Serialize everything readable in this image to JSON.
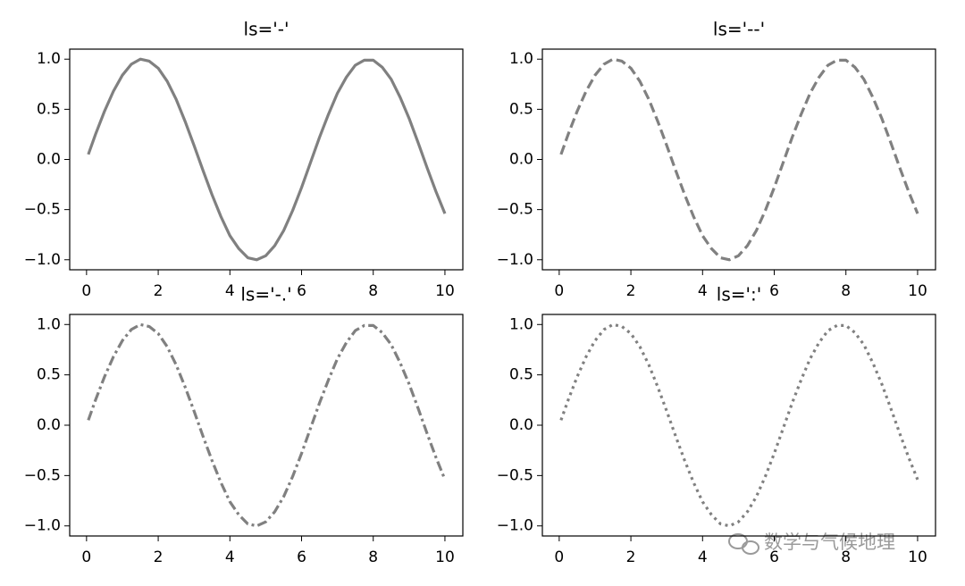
{
  "chart_data": [
    {
      "type": "line",
      "title": "ls='-'",
      "linestyle": "-",
      "x": [
        0.05,
        0.25,
        0.5,
        0.75,
        1,
        1.25,
        1.5,
        1.75,
        2,
        2.25,
        2.5,
        2.75,
        3,
        3.25,
        3.5,
        3.75,
        4,
        4.25,
        4.5,
        4.75,
        5,
        5.25,
        5.5,
        5.75,
        6,
        6.25,
        6.5,
        6.75,
        7,
        7.25,
        7.5,
        7.75,
        8,
        8.25,
        8.5,
        8.75,
        9,
        9.25,
        9.5,
        9.75,
        10
      ],
      "series": [
        {
          "color": "#808080",
          "values": [
            0.05,
            0.25,
            0.48,
            0.68,
            0.84,
            0.95,
            1.0,
            0.98,
            0.91,
            0.78,
            0.6,
            0.38,
            0.14,
            -0.11,
            -0.35,
            -0.57,
            -0.76,
            -0.89,
            -0.98,
            -1.0,
            -0.96,
            -0.86,
            -0.71,
            -0.51,
            -0.28,
            -0.03,
            0.22,
            0.45,
            0.66,
            0.82,
            0.94,
            0.99,
            0.99,
            0.92,
            0.8,
            0.62,
            0.41,
            0.17,
            -0.08,
            -0.32,
            -0.54
          ]
        }
      ],
      "xlim": [
        -0.47,
        10.5
      ],
      "ylim": [
        -1.1,
        1.1
      ],
      "xticks": [
        0,
        2,
        4,
        6,
        8,
        10
      ],
      "yticks": [
        {
          "value": -1,
          "label": "−1.0"
        },
        {
          "value": -0.5,
          "label": "−0.5"
        },
        {
          "value": 0,
          "label": "0.0"
        },
        {
          "value": 0.5,
          "label": "0.5"
        },
        {
          "value": 1,
          "label": "1.0"
        }
      ]
    },
    {
      "type": "line",
      "title": "ls='--'",
      "linestyle": "--",
      "x": [
        0.05,
        0.25,
        0.5,
        0.75,
        1,
        1.25,
        1.5,
        1.75,
        2,
        2.25,
        2.5,
        2.75,
        3,
        3.25,
        3.5,
        3.75,
        4,
        4.25,
        4.5,
        4.75,
        5,
        5.25,
        5.5,
        5.75,
        6,
        6.25,
        6.5,
        6.75,
        7,
        7.25,
        7.5,
        7.75,
        8,
        8.25,
        8.5,
        8.75,
        9,
        9.25,
        9.5,
        9.75,
        10
      ],
      "series": [
        {
          "color": "#808080",
          "values": [
            0.05,
            0.25,
            0.48,
            0.68,
            0.84,
            0.95,
            1.0,
            0.98,
            0.91,
            0.78,
            0.6,
            0.38,
            0.14,
            -0.11,
            -0.35,
            -0.57,
            -0.76,
            -0.89,
            -0.98,
            -1.0,
            -0.96,
            -0.86,
            -0.71,
            -0.51,
            -0.28,
            -0.03,
            0.22,
            0.45,
            0.66,
            0.82,
            0.94,
            0.99,
            0.99,
            0.92,
            0.8,
            0.62,
            0.41,
            0.17,
            -0.08,
            -0.32,
            -0.54
          ]
        }
      ],
      "xlim": [
        -0.47,
        10.5
      ],
      "ylim": [
        -1.1,
        1.1
      ],
      "xticks": [
        0,
        2,
        4,
        6,
        8,
        10
      ],
      "yticks": [
        {
          "value": -1,
          "label": "−1.0"
        },
        {
          "value": -0.5,
          "label": "−0.5"
        },
        {
          "value": 0,
          "label": "0.0"
        },
        {
          "value": 0.5,
          "label": "0.5"
        },
        {
          "value": 1,
          "label": "1.0"
        }
      ]
    },
    {
      "type": "line",
      "title": "ls='-.'",
      "linestyle": "-.",
      "x": [
        0.05,
        0.25,
        0.5,
        0.75,
        1,
        1.25,
        1.5,
        1.75,
        2,
        2.25,
        2.5,
        2.75,
        3,
        3.25,
        3.5,
        3.75,
        4,
        4.25,
        4.5,
        4.75,
        5,
        5.25,
        5.5,
        5.75,
        6,
        6.25,
        6.5,
        6.75,
        7,
        7.25,
        7.5,
        7.75,
        8,
        8.25,
        8.5,
        8.75,
        9,
        9.25,
        9.5,
        9.75,
        10
      ],
      "series": [
        {
          "color": "#808080",
          "values": [
            0.05,
            0.25,
            0.48,
            0.68,
            0.84,
            0.95,
            1.0,
            0.98,
            0.91,
            0.78,
            0.6,
            0.38,
            0.14,
            -0.11,
            -0.35,
            -0.57,
            -0.76,
            -0.89,
            -0.98,
            -1.0,
            -0.96,
            -0.86,
            -0.71,
            -0.51,
            -0.28,
            -0.03,
            0.22,
            0.45,
            0.66,
            0.82,
            0.94,
            0.99,
            0.99,
            0.92,
            0.8,
            0.62,
            0.41,
            0.17,
            -0.08,
            -0.32,
            -0.54
          ]
        }
      ],
      "xlim": [
        -0.47,
        10.5
      ],
      "ylim": [
        -1.1,
        1.1
      ],
      "xticks": [
        0,
        2,
        4,
        6,
        8,
        10
      ],
      "yticks": [
        {
          "value": -1,
          "label": "−1.0"
        },
        {
          "value": -0.5,
          "label": "−0.5"
        },
        {
          "value": 0,
          "label": "0.0"
        },
        {
          "value": 0.5,
          "label": "0.5"
        },
        {
          "value": 1,
          "label": "1.0"
        }
      ]
    },
    {
      "type": "line",
      "title": "ls=':'",
      "linestyle": ":",
      "x": [
        0.05,
        0.25,
        0.5,
        0.75,
        1,
        1.25,
        1.5,
        1.75,
        2,
        2.25,
        2.5,
        2.75,
        3,
        3.25,
        3.5,
        3.75,
        4,
        4.25,
        4.5,
        4.75,
        5,
        5.25,
        5.5,
        5.75,
        6,
        6.25,
        6.5,
        6.75,
        7,
        7.25,
        7.5,
        7.75,
        8,
        8.25,
        8.5,
        8.75,
        9,
        9.25,
        9.5,
        9.75,
        10
      ],
      "series": [
        {
          "color": "#808080",
          "values": [
            0.05,
            0.25,
            0.48,
            0.68,
            0.84,
            0.95,
            1.0,
            0.98,
            0.91,
            0.78,
            0.6,
            0.38,
            0.14,
            -0.11,
            -0.35,
            -0.57,
            -0.76,
            -0.89,
            -0.98,
            -1.0,
            -0.96,
            -0.86,
            -0.71,
            -0.51,
            -0.28,
            -0.03,
            0.22,
            0.45,
            0.66,
            0.82,
            0.94,
            0.99,
            0.99,
            0.92,
            0.8,
            0.62,
            0.41,
            0.17,
            -0.08,
            -0.32,
            -0.54
          ]
        }
      ],
      "xlim": [
        -0.47,
        10.5
      ],
      "ylim": [
        -1.1,
        1.1
      ],
      "xticks": [
        0,
        2,
        4,
        6,
        8,
        10
      ],
      "yticks": [
        {
          "value": -1,
          "label": "−1.0"
        },
        {
          "value": -0.5,
          "label": "−0.5"
        },
        {
          "value": 0,
          "label": "0.0"
        },
        {
          "value": 0.5,
          "label": "0.5"
        },
        {
          "value": 1,
          "label": "1.0"
        }
      ]
    }
  ],
  "watermark": "数学与气候地理"
}
